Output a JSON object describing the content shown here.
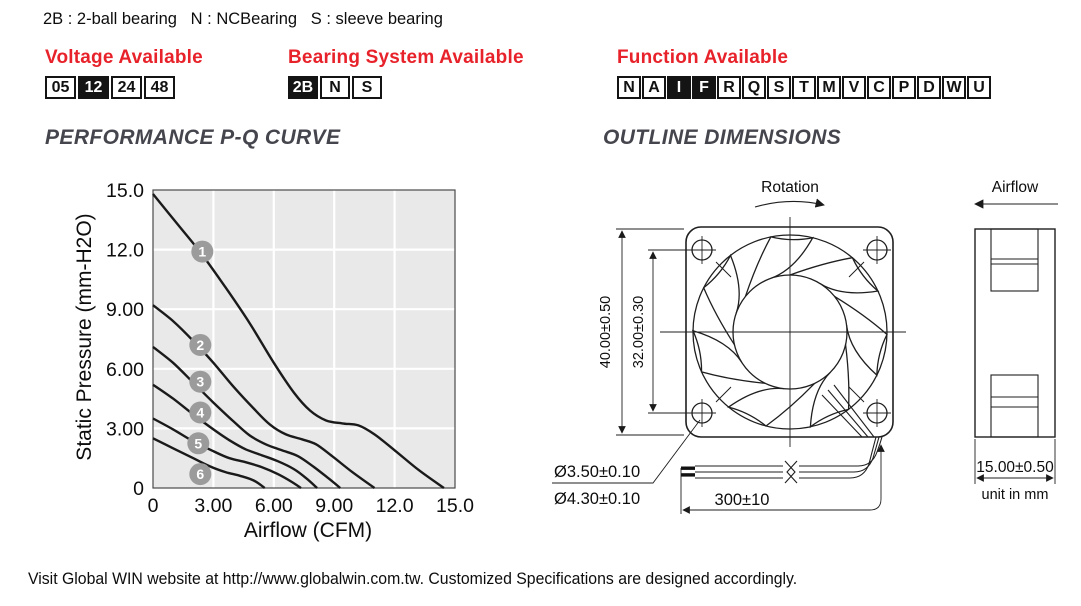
{
  "legend_line": "2B : 2-ball bearing   N : NCBearing   S : sleeve bearing",
  "availability": {
    "voltage": {
      "title": "Voltage Available",
      "codes": [
        {
          "code": "05",
          "selected": false
        },
        {
          "code": "12",
          "selected": true
        },
        {
          "code": "24",
          "selected": false
        },
        {
          "code": "48",
          "selected": false
        }
      ]
    },
    "bearing": {
      "title": "Bearing System Available",
      "codes": [
        {
          "code": "2B",
          "selected": true
        },
        {
          "code": "N",
          "selected": false
        },
        {
          "code": "S",
          "selected": false
        }
      ]
    },
    "function": {
      "title": "Function Available",
      "codes": [
        {
          "code": "N",
          "selected": false
        },
        {
          "code": "A",
          "selected": false
        },
        {
          "code": "I",
          "selected": true
        },
        {
          "code": "F",
          "selected": true
        },
        {
          "code": "R",
          "selected": false
        },
        {
          "code": "Q",
          "selected": false
        },
        {
          "code": "S",
          "selected": false
        },
        {
          "code": "T",
          "selected": false
        },
        {
          "code": "M",
          "selected": false
        },
        {
          "code": "V",
          "selected": false
        },
        {
          "code": "C",
          "selected": false
        },
        {
          "code": "P",
          "selected": false
        },
        {
          "code": "D",
          "selected": false
        },
        {
          "code": "W",
          "selected": false
        },
        {
          "code": "U",
          "selected": false
        }
      ]
    }
  },
  "sections": {
    "performance_title": "PERFORMANCE P-Q CURVE",
    "outline_title": "OUTLINE DIMENSIONS"
  },
  "chart_data": {
    "type": "line",
    "title": "PERFORMANCE P-Q CURVE",
    "xlabel": "Airflow (CFM)",
    "ylabel": "Static Pressure (mm-H2O)",
    "xlim": [
      0,
      15
    ],
    "ylim": [
      0,
      15
    ],
    "grid": true,
    "legend_position": "on-curve-numbered-badges",
    "x_ticks": [
      {
        "v": 0,
        "label": "0"
      },
      {
        "v": 3,
        "label": "3.00"
      },
      {
        "v": 6,
        "label": "6.00"
      },
      {
        "v": 9,
        "label": "9.00"
      },
      {
        "v": 12,
        "label": "12.0"
      },
      {
        "v": 15,
        "label": "15.0"
      }
    ],
    "y_ticks": [
      {
        "v": 0,
        "label": "0"
      },
      {
        "v": 3,
        "label": "3.00"
      },
      {
        "v": 6,
        "label": "6.00"
      },
      {
        "v": 9,
        "label": "9.00"
      },
      {
        "v": 12,
        "label": "12.0"
      },
      {
        "v": 15,
        "label": "15.0"
      }
    ],
    "series": [
      {
        "name": "1",
        "badge_at": [
          2.45,
          11.9
        ],
        "points": [
          [
            0,
            14.8
          ],
          [
            1.2,
            13.3
          ],
          [
            2.4,
            11.8
          ],
          [
            3.6,
            10.1
          ],
          [
            4.8,
            8.3
          ],
          [
            6,
            6.3
          ],
          [
            7,
            4.8
          ],
          [
            7.8,
            3.9
          ],
          [
            8.6,
            3.4
          ],
          [
            9.4,
            3.25
          ],
          [
            10.2,
            3.15
          ],
          [
            11,
            2.7
          ],
          [
            12,
            1.9
          ],
          [
            13.2,
            0.9
          ],
          [
            14.45,
            0
          ]
        ]
      },
      {
        "name": "2",
        "badge_at": [
          2.35,
          7.2
        ],
        "points": [
          [
            0,
            9.2
          ],
          [
            1,
            8.4
          ],
          [
            2,
            7.4
          ],
          [
            3,
            6.3
          ],
          [
            4,
            5.1
          ],
          [
            5,
            4
          ],
          [
            5.8,
            3.2
          ],
          [
            6.6,
            2.7
          ],
          [
            7.4,
            2.45
          ],
          [
            8.1,
            2.2
          ],
          [
            8.9,
            1.6
          ],
          [
            9.9,
            0.8
          ],
          [
            11,
            0
          ]
        ]
      },
      {
        "name": "3",
        "badge_at": [
          2.35,
          5.35
        ],
        "points": [
          [
            0,
            7.1
          ],
          [
            1,
            6.3
          ],
          [
            2,
            5.3
          ],
          [
            3,
            4.3
          ],
          [
            4,
            3.35
          ],
          [
            4.8,
            2.65
          ],
          [
            5.6,
            2.2
          ],
          [
            6.4,
            1.9
          ],
          [
            7.2,
            1.6
          ],
          [
            8,
            1.05
          ],
          [
            8.7,
            0.5
          ],
          [
            9.3,
            0
          ]
        ]
      },
      {
        "name": "4",
        "badge_at": [
          2.35,
          3.8
        ],
        "points": [
          [
            0,
            5.2
          ],
          [
            1,
            4.5
          ],
          [
            2,
            3.7
          ],
          [
            3,
            2.95
          ],
          [
            3.8,
            2.4
          ],
          [
            4.6,
            1.95
          ],
          [
            5.4,
            1.65
          ],
          [
            6.2,
            1.35
          ],
          [
            7,
            0.95
          ],
          [
            7.6,
            0.5
          ],
          [
            8.15,
            0
          ]
        ]
      },
      {
        "name": "5",
        "badge_at": [
          2.25,
          2.25
        ],
        "points": [
          [
            0,
            3.5
          ],
          [
            1,
            2.95
          ],
          [
            2,
            2.35
          ],
          [
            3,
            1.85
          ],
          [
            3.8,
            1.5
          ],
          [
            4.6,
            1.3
          ],
          [
            5.4,
            1.05
          ],
          [
            6.2,
            0.7
          ],
          [
            6.9,
            0.3
          ],
          [
            7.35,
            0
          ]
        ]
      },
      {
        "name": "6",
        "badge_at": [
          2.35,
          0.7
        ],
        "points": [
          [
            0,
            2.5
          ],
          [
            1,
            2
          ],
          [
            2,
            1.5
          ],
          [
            2.8,
            1.1
          ],
          [
            3.6,
            0.8
          ],
          [
            4.3,
            0.62
          ],
          [
            5,
            0.38
          ],
          [
            5.55,
            0
          ]
        ]
      }
    ]
  },
  "outline": {
    "rotation_label": "Rotation",
    "airflow_label": "Airflow",
    "dim_frame_size": "40.00±0.50",
    "dim_hole_pitch": "32.00±0.30",
    "dim_hole_d1": "Ø3.50±0.10",
    "dim_hole_d2": "Ø4.30±0.10",
    "dim_lead_length": "300±10",
    "dim_depth": "15.00±0.50",
    "unit_note": "unit in mm"
  },
  "footer": "Visit Global WIN website at http://www.globalwin.com.tw. Customized Specifications are designed accordingly.",
  "colors": {
    "accent_red": "#e8222a",
    "heading_gray": "#45454d",
    "chart_bg": "#e9e9e9",
    "grid_white": "#ffffff",
    "curve_black": "#1a1a1a",
    "badge_gray": "#9b9b9b",
    "box_black": "#141414"
  }
}
